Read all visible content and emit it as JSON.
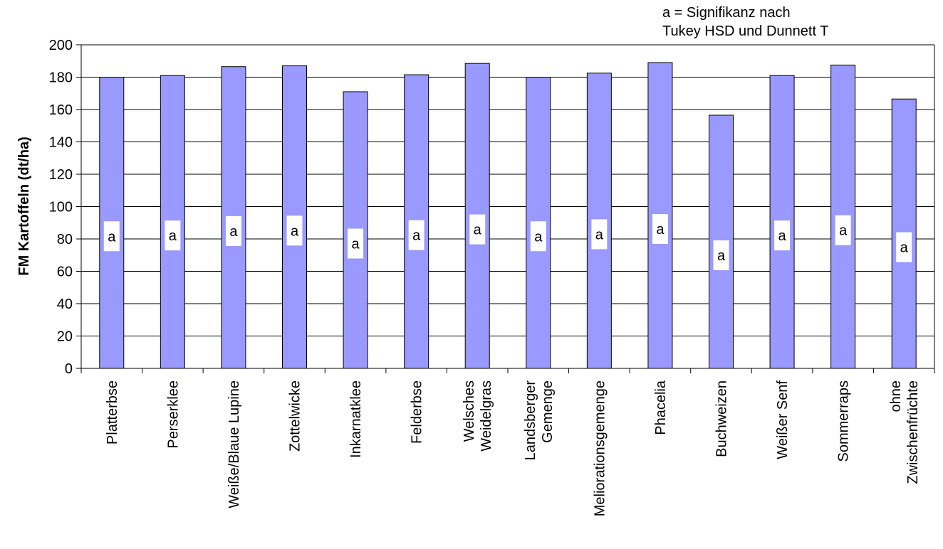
{
  "note": {
    "line1": "a = Signifikanz nach",
    "line2": "Tukey HSD und Dunnett T"
  },
  "chart_data": {
    "type": "bar",
    "title": "",
    "xlabel": "",
    "ylabel": "FM Kartoffeln (dt/ha)",
    "ylim": [
      0,
      200
    ],
    "yticks": [
      0,
      20,
      40,
      60,
      80,
      100,
      120,
      140,
      160,
      180,
      200
    ],
    "grid": true,
    "bar_color": "#9999ff",
    "categories": [
      [
        "Platterbse"
      ],
      [
        "Perserklee"
      ],
      [
        "Weiße/Blaue Lupine"
      ],
      [
        "Zottelwicke"
      ],
      [
        "Inkarnatklee"
      ],
      [
        "Felderbse"
      ],
      [
        "Welsches",
        "Weidelgras"
      ],
      [
        "Landsberger",
        "Gemenge"
      ],
      [
        "Meliorationsgemenge"
      ],
      [
        "Phacelia"
      ],
      [
        "Buchweizen"
      ],
      [
        "Weißer Senf"
      ],
      [
        "Sommerraps"
      ],
      [
        "ohne",
        "Zwischenfrüchte"
      ]
    ],
    "values": [
      180,
      181,
      186.5,
      187,
      171,
      181.5,
      188.5,
      180,
      182.5,
      189,
      156.5,
      181,
      187.5,
      166.5
    ],
    "data_labels": [
      "a",
      "a",
      "a",
      "a",
      "a",
      "a",
      "a",
      "a",
      "a",
      "a",
      "a",
      "a",
      "a",
      "a"
    ]
  }
}
